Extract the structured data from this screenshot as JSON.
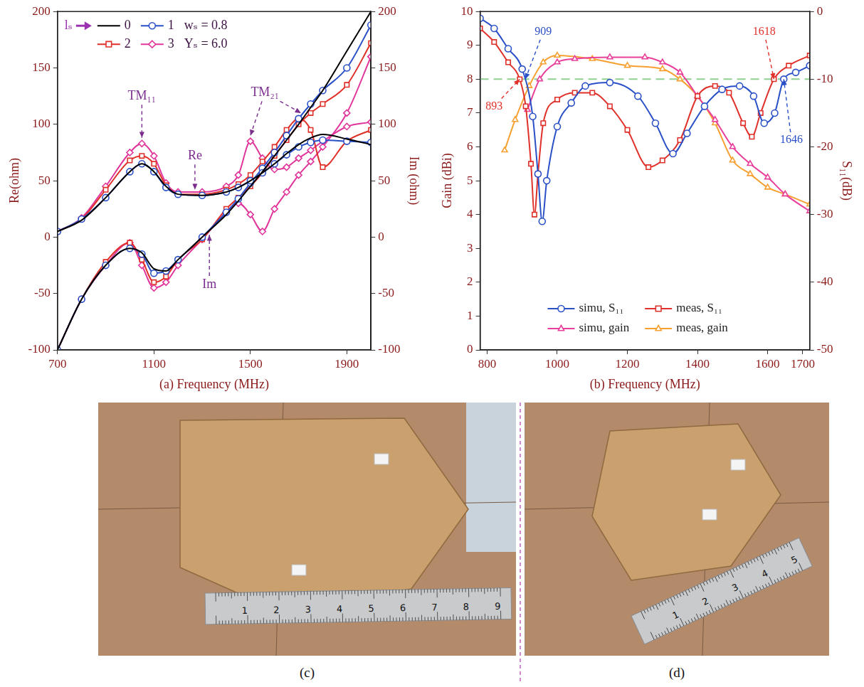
{
  "chart_data": [
    {
      "type": "line",
      "panel": "(a)",
      "x_label": "Frequency (MHz)",
      "y_label": "Re(ohm)",
      "y2_label": "Im (ohm)",
      "x": [
        700,
        800,
        900,
        1000,
        1050,
        1100,
        1150,
        1200,
        1300,
        1400,
        1450,
        1500,
        1550,
        1600,
        1650,
        1700,
        1750,
        1800,
        1900,
        2000
      ],
      "xlim": [
        700,
        2000
      ],
      "xticks": [
        700,
        1100,
        1500,
        1900
      ],
      "ylim": [
        -100,
        200
      ],
      "yticks": [
        -100,
        -50,
        0,
        50,
        100,
        150,
        200
      ],
      "y2lim": [
        -100,
        200
      ],
      "y2ticks": [
        -100,
        -50,
        0,
        50,
        100,
        150,
        200
      ],
      "grid": false,
      "legend": "upper left",
      "legend_title": "lₛ",
      "legend_notes": [
        "wₛ = 0.8",
        "Yₛ = 6.0"
      ],
      "series": [
        {
          "name": "0",
          "color": "#000000",
          "marker": "none",
          "re": [
            5,
            15,
            35,
            58,
            65,
            58,
            45,
            38,
            37,
            40,
            44,
            50,
            57,
            65,
            74,
            82,
            88,
            91,
            87,
            82
          ],
          "im": [
            -100,
            -55,
            -25,
            -10,
            -14,
            -28,
            -30,
            -20,
            0,
            20,
            32,
            45,
            58,
            72,
            86,
            100,
            115,
            130,
            165,
            200
          ]
        },
        {
          "name": "1",
          "color": "#2a50c8",
          "marker": "circle",
          "re": [
            5,
            16,
            35,
            58,
            65,
            58,
            44,
            38,
            37,
            40,
            44,
            50,
            57,
            65,
            73,
            80,
            84,
            86,
            85,
            84
          ],
          "im": [
            -100,
            -55,
            -25,
            -10,
            -15,
            -32,
            -30,
            -20,
            0,
            22,
            34,
            48,
            61,
            75,
            90,
            105,
            118,
            130,
            150,
            188
          ]
        },
        {
          "name": "2",
          "color": "#e0302a",
          "marker": "square",
          "re": [
            5,
            16,
            42,
            68,
            72,
            65,
            46,
            38,
            38,
            42,
            47,
            55,
            67,
            80,
            95,
            105,
            95,
            62,
            85,
            95
          ],
          "im": [
            -100,
            -55,
            -22,
            -5,
            -20,
            -40,
            -35,
            -20,
            -2,
            25,
            35,
            45,
            57,
            72,
            86,
            100,
            110,
            118,
            135,
            172
          ]
        },
        {
          "name": "3",
          "color": "#e0359a",
          "marker": "diamond",
          "re": [
            5,
            17,
            45,
            75,
            83,
            72,
            48,
            40,
            40,
            45,
            55,
            85,
            70,
            60,
            62,
            70,
            77,
            85,
            98,
            102
          ],
          "im": [
            -100,
            -55,
            -25,
            -5,
            -25,
            -45,
            -40,
            -25,
            -2,
            22,
            30,
            20,
            5,
            25,
            40,
            55,
            67,
            80,
            110,
            160
          ]
        }
      ],
      "annotations": [
        {
          "text": "TM₁₁",
          "x": 1050,
          "y": 125,
          "color": "#7b2d8e",
          "arrows": [
            [
              1050,
              88
            ]
          ]
        },
        {
          "text": "TM₂₁",
          "x": 1560,
          "y": 128,
          "color": "#7b2d8e",
          "arrows": [
            [
              1500,
              90
            ],
            [
              1710,
              110
            ]
          ]
        },
        {
          "text": "Re",
          "x": 1270,
          "y": 72,
          "color": "#7b2d8e",
          "arrows": [
            [
              1270,
              42
            ]
          ]
        },
        {
          "text": "Im",
          "x": 1330,
          "y": -42,
          "color": "#7b2d8e",
          "arrows": [
            [
              1330,
              2
            ]
          ]
        }
      ]
    },
    {
      "type": "line",
      "panel": "(b)",
      "x_label": "Frequency (MHz)",
      "y_label": "Gain (dBi)",
      "y2_label": "S₁₁(dB)",
      "xlim": [
        780,
        1720
      ],
      "xticks": [
        800,
        1000,
        1200,
        1400,
        1600,
        1700
      ],
      "ylim": [
        0,
        10
      ],
      "yticks": [
        0,
        1,
        2,
        3,
        4,
        5,
        6,
        7,
        8,
        9,
        10
      ],
      "y2lim": [
        -50,
        0
      ],
      "y2ticks": [
        -50,
        -40,
        -30,
        -20,
        -10,
        0
      ],
      "grid": false,
      "legend": "lower center",
      "reference_line": {
        "axis": "y2",
        "value": -10,
        "color": "#8fcf8f",
        "line_style": "dashed"
      },
      "series": [
        {
          "name": "simu, S₁₁",
          "color": "#2a50c8",
          "marker": "circle",
          "axis": "y2",
          "x": [
            780,
            820,
            860,
            900,
            930,
            945,
            957,
            970,
            1000,
            1040,
            1080,
            1150,
            1230,
            1280,
            1330,
            1370,
            1420,
            1470,
            1520,
            1560,
            1590,
            1620,
            1646,
            1680,
            1720
          ],
          "values": [
            -1,
            -2.5,
            -5.5,
            -8.5,
            -15.5,
            -24,
            -31,
            -25,
            -17,
            -13.5,
            -11,
            -10.5,
            -12.5,
            -16.5,
            -21,
            -18,
            -14,
            -11.5,
            -11,
            -12.5,
            -16.5,
            -15,
            -10,
            -9,
            -8
          ]
        },
        {
          "name": "meas, S₁₁",
          "color": "#e0302a",
          "marker": "square",
          "axis": "y2",
          "x": [
            780,
            820,
            860,
            893,
            910,
            925,
            935,
            945,
            960,
            1000,
            1050,
            1100,
            1150,
            1200,
            1260,
            1300,
            1350,
            1400,
            1450,
            1490,
            1530,
            1555,
            1580,
            1618,
            1660,
            1720
          ],
          "values": [
            -2.5,
            -4.5,
            -7.5,
            -10,
            -14,
            -22.5,
            -30,
            -24,
            -16.5,
            -13,
            -12,
            -12,
            -14,
            -17.5,
            -23,
            -22,
            -19,
            -12.5,
            -11,
            -12,
            -16.5,
            -18.5,
            -15,
            -10,
            -8,
            -6.5
          ]
        },
        {
          "name": "simu, gain",
          "color": "#e8409a",
          "marker": "triangle",
          "axis": "y",
          "x": [
            915,
            950,
            1000,
            1050,
            1150,
            1250,
            1300,
            1350,
            1400,
            1450,
            1500,
            1550,
            1600,
            1650,
            1720
          ],
          "values": [
            7.1,
            8.0,
            8.5,
            8.6,
            8.65,
            8.65,
            8.5,
            8.2,
            7.5,
            6.8,
            6.0,
            5.5,
            5.1,
            4.6,
            4.1
          ]
        },
        {
          "name": "meas, gain",
          "color": "#f5a030",
          "marker": "triangle",
          "axis": "y",
          "x": [
            850,
            880,
            920,
            960,
            1000,
            1100,
            1200,
            1300,
            1350,
            1400,
            1450,
            1500,
            1550,
            1600,
            1650,
            1720
          ],
          "values": [
            5.9,
            6.8,
            7.8,
            8.5,
            8.7,
            8.6,
            8.4,
            8.3,
            8.0,
            7.5,
            6.7,
            5.6,
            5.2,
            4.8,
            4.6,
            4.3
          ]
        }
      ],
      "annotations": [
        {
          "text": "909",
          "x": 960,
          "y": 9.4,
          "color": "#2a50c8",
          "arrows": [
            [
              909,
              8
            ]
          ]
        },
        {
          "text": "893",
          "x": 820,
          "y": 7.2,
          "color": "#e0302a",
          "arrows": [
            [
              893,
              8
            ]
          ]
        },
        {
          "text": "1618",
          "x": 1590,
          "y": 9.4,
          "color": "#e0302a",
          "arrows": [
            [
              1618,
              8
            ]
          ]
        },
        {
          "text": "1646",
          "x": 1668,
          "y": 6.2,
          "color": "#2a50c8",
          "arrows": [
            [
              1646,
              8
            ]
          ]
        }
      ]
    }
  ],
  "photos": [
    {
      "label": "(c)",
      "ruler_labels": [
        "1",
        "2",
        "3",
        "4",
        "5",
        "6",
        "7",
        "8",
        "9"
      ]
    },
    {
      "label": "(d)",
      "ruler_labels": [
        "1",
        "2",
        "3",
        "4",
        "5"
      ]
    }
  ]
}
